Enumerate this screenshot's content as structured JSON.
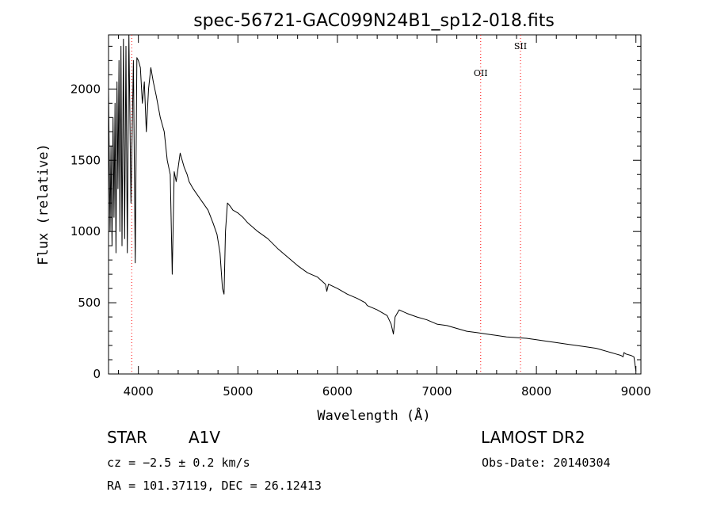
{
  "chart_data": {
    "type": "line",
    "title": "spec-56721-GAC099N24B1_sp12-018.fits",
    "xlabel": "Wavelength (Å)",
    "ylabel": "Flux (relative)",
    "xlim": [
      3700,
      9050
    ],
    "ylim": [
      0,
      2380
    ],
    "x_ticks": [
      4000,
      5000,
      6000,
      7000,
      8000,
      9000
    ],
    "y_ticks": [
      0,
      500,
      1000,
      1500,
      2000
    ],
    "grid": false,
    "line_color": "#000000",
    "marker_color": "#ff0000",
    "series": [
      {
        "x": [
          3700,
          3715,
          3725,
          3735,
          3745,
          3755,
          3765,
          3775,
          3785,
          3795,
          3805,
          3815,
          3825,
          3835,
          3850,
          3862,
          3875,
          3889,
          3905,
          3925,
          3950,
          3968,
          3985,
          4000,
          4020,
          4040,
          4060,
          4080,
          4102,
          4125,
          4150,
          4180,
          4220,
          4260,
          4290,
          4320,
          4340,
          4360,
          4380,
          4420,
          4460,
          4490,
          4510,
          4550,
          4600,
          4650,
          4700,
          4750,
          4790,
          4820,
          4845,
          4861,
          4875,
          4895,
          4920,
          4950,
          5000,
          5050,
          5100,
          5150,
          5200,
          5300,
          5400,
          5500,
          5600,
          5700,
          5800,
          5880,
          5893,
          5910,
          6000,
          6100,
          6200,
          6280,
          6300,
          6400,
          6450,
          6500,
          6540,
          6563,
          6580,
          6620,
          6700,
          6800,
          6900,
          7000,
          7100,
          7200,
          7300,
          7400,
          7500,
          7600,
          7700,
          7800,
          7900,
          8000,
          8100,
          8200,
          8300,
          8400,
          8500,
          8600,
          8650,
          8700,
          8750,
          8800,
          8850,
          8870,
          8880,
          8900,
          8950,
          8980,
          9000
        ],
        "y": [
          2000,
          1000,
          1600,
          900,
          1800,
          1100,
          1900,
          850,
          2050,
          1300,
          2200,
          1000,
          2300,
          900,
          2350,
          950,
          2300,
          850,
          2380,
          1200,
          2200,
          780,
          2220,
          2200,
          2150,
          1900,
          2050,
          1700,
          2000,
          2150,
          2050,
          1950,
          1800,
          1700,
          1500,
          1400,
          700,
          1420,
          1350,
          1550,
          1450,
          1400,
          1350,
          1300,
          1250,
          1200,
          1150,
          1060,
          980,
          850,
          600,
          560,
          1000,
          1200,
          1180,
          1150,
          1130,
          1100,
          1060,
          1030,
          1000,
          950,
          880,
          820,
          760,
          710,
          680,
          630,
          580,
          630,
          600,
          560,
          530,
          500,
          480,
          450,
          430,
          410,
          350,
          280,
          400,
          450,
          425,
          400,
          380,
          350,
          340,
          320,
          300,
          290,
          280,
          270,
          260,
          255,
          250,
          240,
          230,
          220,
          210,
          200,
          190,
          180,
          170,
          160,
          150,
          140,
          130,
          120,
          150,
          140,
          130,
          120,
          20
        ]
      }
    ],
    "line_markers": [
      {
        "label": "",
        "x": 3933
      },
      {
        "label": "OII",
        "x": 7440
      },
      {
        "label": "SII",
        "x": 7840
      }
    ]
  },
  "info": {
    "object_class": "STAR",
    "subclass": "A1V",
    "survey": "LAMOST DR2",
    "cz": "cz = −2.5 ± 0.2 km/s",
    "obs_date": "Obs-Date: 20140304",
    "radec": "RA = 101.37119, DEC =  26.12413"
  }
}
